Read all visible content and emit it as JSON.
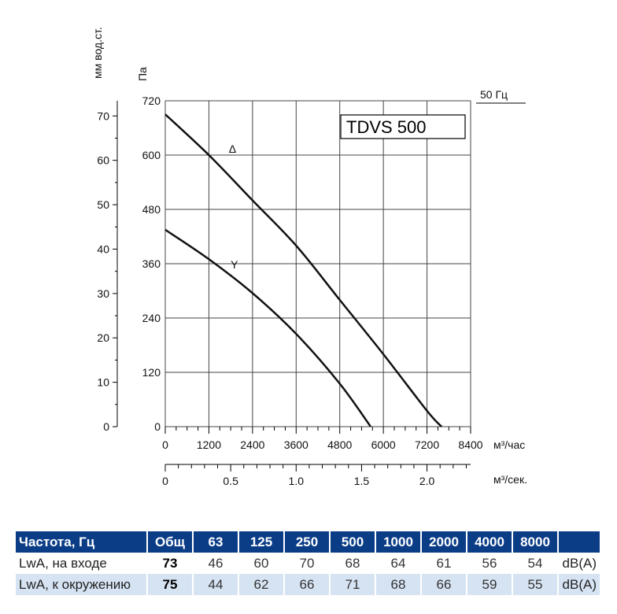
{
  "chart_data": {
    "type": "line",
    "title": "TDVS 500",
    "frequency_label": "50 Гц",
    "y_left_label": "мм вод.ст.",
    "y_right_label": "Па",
    "x_label_top": "м³/час",
    "x_label_bottom": "м³/сек.",
    "y_pa_ticks": [
      "0",
      "120",
      "240",
      "360",
      "480",
      "600",
      "720"
    ],
    "y_mm_ticks": [
      "0",
      "10",
      "20",
      "30",
      "40",
      "50",
      "60",
      "70"
    ],
    "x_m3h_ticks": [
      "0",
      "1200",
      "2400",
      "3600",
      "4800",
      "6000",
      "7200",
      "8400"
    ],
    "x_m3s_ticks": [
      "0",
      "0.5",
      "1.0",
      "1.5",
      "2.0"
    ],
    "xlim_m3h": [
      0,
      8400
    ],
    "ylim_pa": [
      0,
      720
    ],
    "grid": true,
    "series": [
      {
        "name": "Δ",
        "x": [
          0,
          1200,
          2400,
          3600,
          4800,
          6000,
          7200,
          7600
        ],
        "y": [
          690,
          600,
          500,
          400,
          280,
          160,
          35,
          0
        ]
      },
      {
        "name": "Y",
        "x": [
          0,
          1200,
          2400,
          3600,
          4800,
          5650
        ],
        "y": [
          435,
          370,
          295,
          205,
          95,
          0
        ]
      }
    ]
  },
  "table": {
    "header": [
      "Частота, Гц",
      "Общ",
      "63",
      "125",
      "250",
      "500",
      "1000",
      "2000",
      "4000",
      "8000",
      ""
    ],
    "rows": [
      {
        "label": "LwA, на входе",
        "total": "73",
        "values": [
          "46",
          "60",
          "70",
          "68",
          "64",
          "61",
          "56",
          "54"
        ],
        "unit": "dB(A)"
      },
      {
        "label": "LwA, к окружению",
        "total": "75",
        "values": [
          "44",
          "62",
          "66",
          "71",
          "68",
          "66",
          "59",
          "55"
        ],
        "unit": "dB(A)"
      }
    ]
  },
  "colors": {
    "header_bg": "#0b3d87",
    "row_alt_bg": "#d6e3f3",
    "curve": "#111111",
    "grid": "#444444"
  }
}
